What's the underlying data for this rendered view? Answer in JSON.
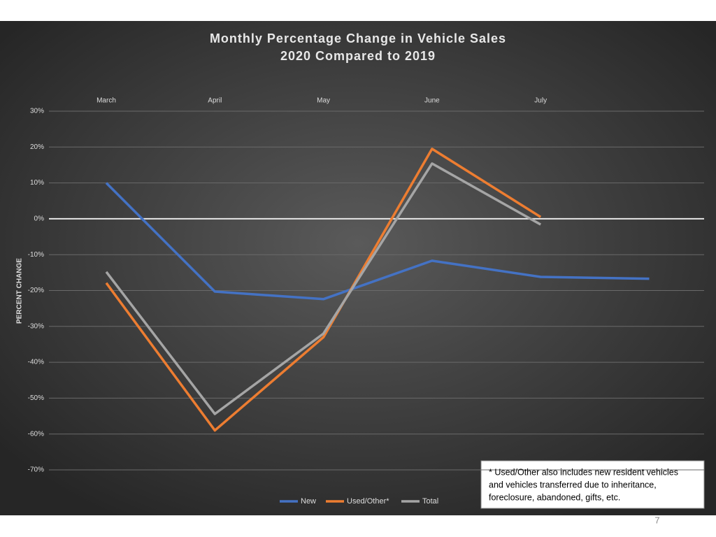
{
  "chart_data": {
    "type": "line",
    "title": [
      "Monthly Percentage Change in Vehicle Sales",
      "2020 Compared to 2019"
    ],
    "ylabel": "PERCENT CHANGE",
    "categories": [
      "March",
      "April",
      "May",
      "June",
      "July",
      null
    ],
    "series": [
      {
        "name": "New",
        "color": "#4472c4",
        "values": [
          10,
          -20.3,
          -22.4,
          -11.7,
          -16.2,
          -16.7
        ]
      },
      {
        "name": "Used/Other*",
        "color": "#ed7d31",
        "values": [
          -17.9,
          -59,
          -33,
          19.5,
          0.5,
          null
        ]
      },
      {
        "name": "Total",
        "color": "#a5a5a5",
        "values": [
          -14.8,
          -54.4,
          -32,
          15.4,
          -1.6,
          null
        ]
      }
    ],
    "ylim": [
      -70,
      30
    ],
    "yticks": [
      {
        "value": 30,
        "label": "30%"
      },
      {
        "value": 20,
        "label": "20%"
      },
      {
        "value": 10,
        "label": "10%"
      },
      {
        "value": 0,
        "label": "0%"
      },
      {
        "value": -10,
        "label": "-10%"
      },
      {
        "value": -20,
        "label": "-20%"
      },
      {
        "value": -30,
        "label": "-30%"
      },
      {
        "value": -40,
        "label": "-40%"
      },
      {
        "value": -50,
        "label": "-50%"
      },
      {
        "value": -60,
        "label": "-60%"
      },
      {
        "value": -70,
        "label": "-70%"
      }
    ],
    "grid": true,
    "legend": "bottom",
    "annotation": [
      "* Used/Other also includes new resident vehicles",
      "and vehicles transferred due to inheritance,",
      "foreclosure, abandoned, gifts, etc."
    ]
  },
  "page_number": "7"
}
